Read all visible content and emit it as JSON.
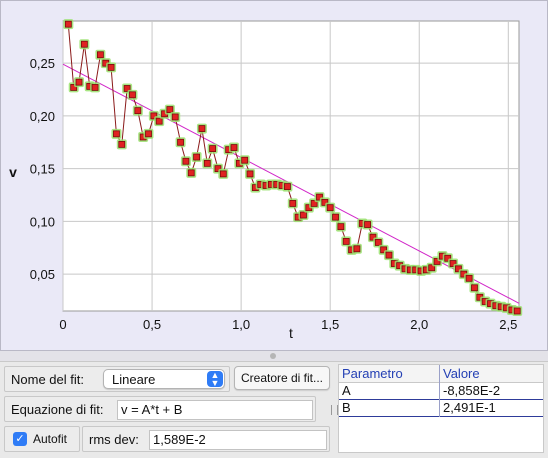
{
  "chart_data": {
    "type": "scatter",
    "xlabel": "t",
    "ylabel": "v",
    "xlim": [
      0.0,
      2.56
    ],
    "ylim": [
      0.015,
      0.29
    ],
    "x_ticks": [
      "0",
      "0,5",
      "1,0",
      "1,5",
      "2,0",
      "2,5"
    ],
    "x_tick_values": [
      0,
      0.5,
      1.0,
      1.5,
      2.0,
      2.5
    ],
    "y_ticks": [
      "0,05",
      "0,10",
      "0,15",
      "0,20",
      "0,25"
    ],
    "y_tick_values": [
      0.05,
      0.1,
      0.15,
      0.2,
      0.25
    ],
    "grid": true,
    "series": [
      {
        "x": [
          0.03,
          0.06,
          0.09,
          0.12,
          0.15,
          0.18,
          0.21,
          0.24,
          0.27,
          0.3,
          0.33,
          0.36,
          0.39,
          0.42,
          0.45,
          0.48,
          0.51,
          0.54,
          0.57,
          0.6,
          0.63,
          0.66,
          0.69,
          0.72,
          0.75,
          0.78,
          0.81,
          0.84,
          0.87,
          0.9,
          0.93,
          0.96,
          0.99,
          1.02,
          1.05,
          1.08,
          1.11,
          1.14,
          1.17,
          1.2,
          1.23,
          1.26,
          1.29,
          1.32,
          1.35,
          1.38,
          1.41,
          1.44,
          1.47,
          1.5,
          1.53,
          1.56,
          1.59,
          1.62,
          1.65,
          1.68,
          1.71,
          1.74,
          1.77,
          1.8,
          1.83,
          1.86,
          1.89,
          1.92,
          1.95,
          1.98,
          2.01,
          2.04,
          2.07,
          2.1,
          2.13,
          2.16,
          2.19,
          2.22,
          2.25,
          2.28,
          2.31,
          2.34,
          2.37,
          2.4,
          2.43,
          2.46,
          2.49,
          2.52,
          2.55
        ],
        "y": [
          0.287,
          0.227,
          0.232,
          0.268,
          0.228,
          0.227,
          0.258,
          0.25,
          0.246,
          0.183,
          0.173,
          0.226,
          0.22,
          0.205,
          0.18,
          0.183,
          0.2,
          0.195,
          0.202,
          0.206,
          0.199,
          0.175,
          0.157,
          0.146,
          0.161,
          0.188,
          0.155,
          0.169,
          0.15,
          0.145,
          0.168,
          0.17,
          0.155,
          0.158,
          0.145,
          0.132,
          0.135,
          0.134,
          0.135,
          0.135,
          0.134,
          0.133,
          0.117,
          0.104,
          0.106,
          0.113,
          0.117,
          0.123,
          0.118,
          0.113,
          0.104,
          0.095,
          0.081,
          0.073,
          0.074,
          0.098,
          0.097,
          0.085,
          0.08,
          0.073,
          0.068,
          0.06,
          0.058,
          0.055,
          0.054,
          0.054,
          0.053,
          0.054,
          0.056,
          0.062,
          0.067,
          0.065,
          0.06,
          0.055,
          0.05,
          0.046,
          0.037,
          0.028,
          0.024,
          0.022,
          0.02,
          0.019,
          0.018,
          0.016,
          0.015
        ]
      }
    ],
    "fit_line": {
      "A": -0.08858,
      "B": 0.2491
    }
  },
  "fit": {
    "name_label": "Nome del fit:",
    "name_value": "Lineare",
    "creator_button": "Creatore di fit...",
    "equation_label": "Equazione di fit:",
    "equation_value": "v = A*t + B",
    "autofit_label": "Autofit",
    "rms_label": "rms dev:",
    "rms_value": "1,589E-2"
  },
  "params_table": {
    "headers": [
      "Parametro",
      "Valore"
    ],
    "rows": [
      {
        "name": "A",
        "value": "-8,858E-2"
      },
      {
        "name": "B",
        "value": "2,491E-1"
      }
    ]
  },
  "colors": {
    "point_fill": "#e02222",
    "point_glow": "#9ae26e",
    "connect_line": "#8a1a1a",
    "fit_line": "#d126c8",
    "grid": "#c8c8c8"
  }
}
